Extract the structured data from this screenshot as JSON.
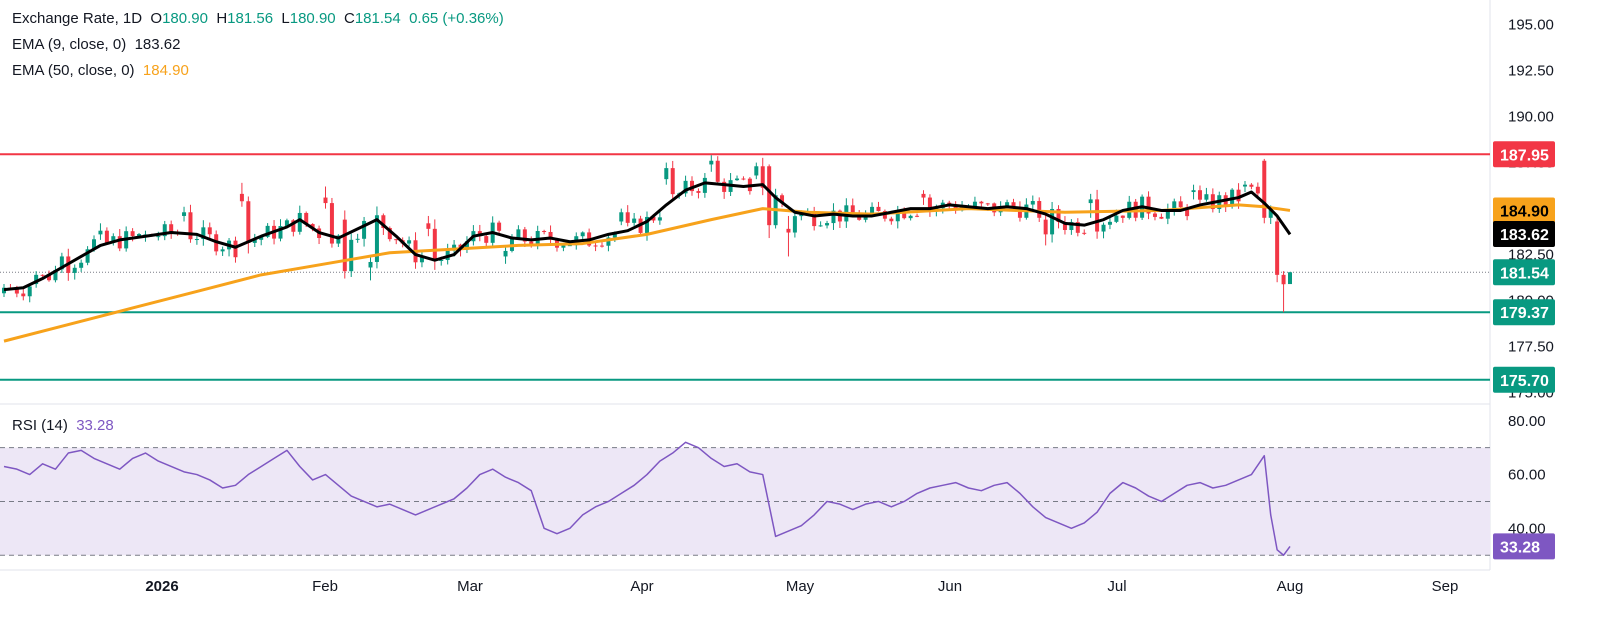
{
  "legend": {
    "title": "Exchange Rate, 1D",
    "ohlc": {
      "o_label": "O",
      "o": "180.90",
      "h_label": "H",
      "h": "181.56",
      "l_label": "L",
      "l": "180.90",
      "c_label": "C",
      "c": "181.54",
      "change": "0.65 (+0.36%)"
    },
    "ema9": {
      "label": "EMA (9, close, 0)",
      "value": "183.62"
    },
    "ema50": {
      "label": "EMA (50, close, 0)",
      "value": "184.90"
    }
  },
  "rsi_legend": {
    "label": "RSI (14)",
    "value": "33.28"
  },
  "colors": {
    "up": "#089981",
    "down": "#f23645",
    "ema9": "#000000",
    "ema50": "#f7a21b",
    "resistance": "#f23645",
    "support": "#089981",
    "rsi": "#7e57c2",
    "rsi_band": "#ede7f6"
  },
  "chart_data": [
    {
      "type": "candlestick",
      "x_ticks": [
        "2026",
        "Feb",
        "Mar",
        "Apr",
        "May",
        "Jun",
        "Jul",
        "Aug",
        "Sep"
      ],
      "y_ticks": [
        "195.00",
        "192.50",
        "190.00",
        "187.50",
        "185.00",
        "182.50",
        "180.00",
        "177.50",
        "175.00"
      ],
      "ylim": [
        174.6,
        195.9
      ],
      "horizontal_levels": [
        {
          "value": 187.95,
          "label": "187.95",
          "kind": "resistance"
        },
        {
          "value": 179.37,
          "label": "179.37",
          "kind": "support"
        },
        {
          "value": 175.7,
          "label": "175.70",
          "kind": "support"
        }
      ],
      "price_labels": [
        {
          "value": 184.9,
          "label": "184.90",
          "series": "ema50"
        },
        {
          "value": 183.62,
          "label": "183.62",
          "series": "ema9"
        },
        {
          "value": 181.54,
          "label": "181.54",
          "series": "last"
        }
      ],
      "last_close": 181.54,
      "ema9_series": [
        [
          0,
          180.6
        ],
        [
          3,
          180.7
        ],
        [
          6,
          181.2
        ],
        [
          9,
          181.8
        ],
        [
          12,
          182.4
        ],
        [
          15,
          183.0
        ],
        [
          18,
          183.3
        ],
        [
          22,
          183.5
        ],
        [
          26,
          183.7
        ],
        [
          30,
          183.6
        ],
        [
          33,
          183.2
        ],
        [
          36,
          182.9
        ],
        [
          40,
          183.5
        ],
        [
          44,
          184.0
        ],
        [
          46,
          184.4
        ],
        [
          49,
          183.7
        ],
        [
          52,
          183.4
        ],
        [
          55,
          183.9
        ],
        [
          58,
          184.4
        ],
        [
          61,
          183.5
        ],
        [
          64,
          182.5
        ],
        [
          67,
          182.2
        ],
        [
          70,
          182.5
        ],
        [
          73,
          183.5
        ],
        [
          76,
          183.7
        ],
        [
          79,
          183.4
        ],
        [
          82,
          183.3
        ],
        [
          85,
          183.4
        ],
        [
          88,
          183.2
        ],
        [
          91,
          183.3
        ],
        [
          94,
          183.6
        ],
        [
          97,
          183.8
        ],
        [
          100,
          184.3
        ],
        [
          103,
          185.2
        ],
        [
          106,
          186.0
        ],
        [
          109,
          186.4
        ],
        [
          112,
          186.3
        ],
        [
          115,
          186.2
        ],
        [
          118,
          186.3
        ],
        [
          120,
          185.6
        ],
        [
          123,
          184.8
        ],
        [
          126,
          184.6
        ],
        [
          129,
          184.7
        ],
        [
          132,
          184.6
        ],
        [
          135,
          184.6
        ],
        [
          138,
          184.8
        ],
        [
          141,
          185.0
        ],
        [
          144,
          185.0
        ],
        [
          147,
          185.2
        ],
        [
          150,
          185.1
        ],
        [
          153,
          185.0
        ],
        [
          156,
          185.1
        ],
        [
          159,
          185.0
        ],
        [
          162,
          184.7
        ],
        [
          165,
          184.2
        ],
        [
          168,
          184.1
        ],
        [
          171,
          184.4
        ],
        [
          174,
          184.9
        ],
        [
          177,
          185.1
        ],
        [
          180,
          184.9
        ],
        [
          183,
          184.9
        ],
        [
          186,
          185.2
        ],
        [
          189,
          185.4
        ],
        [
          192,
          185.6
        ],
        [
          194,
          185.9
        ],
        [
          196,
          185.3
        ],
        [
          198,
          184.6
        ],
        [
          200,
          183.6
        ]
      ],
      "ema50_series": [
        [
          0,
          177.8
        ],
        [
          10,
          178.7
        ],
        [
          20,
          179.6
        ],
        [
          30,
          180.5
        ],
        [
          40,
          181.4
        ],
        [
          50,
          182.0
        ],
        [
          60,
          182.6
        ],
        [
          70,
          182.8
        ],
        [
          80,
          183.0
        ],
        [
          90,
          183.1
        ],
        [
          100,
          183.6
        ],
        [
          110,
          184.4
        ],
        [
          118,
          185.0
        ],
        [
          125,
          184.8
        ],
        [
          135,
          184.7
        ],
        [
          150,
          185.0
        ],
        [
          165,
          184.8
        ],
        [
          180,
          184.9
        ],
        [
          192,
          185.2
        ],
        [
          196,
          185.1
        ],
        [
          200,
          184.9
        ]
      ],
      "ohlc_sample": [
        [
          0,
          180.4,
          180.9,
          180.2,
          180.7
        ],
        [
          5,
          180.9,
          181.6,
          180.7,
          181.4
        ],
        [
          9,
          181.7,
          182.6,
          181.5,
          182.4
        ],
        [
          15,
          183.6,
          184.2,
          183.3,
          183.8
        ],
        [
          22,
          183.5,
          183.8,
          183.2,
          183.6
        ],
        [
          28,
          184.6,
          185.1,
          184.3,
          184.8
        ],
        [
          37,
          185.8,
          186.4,
          185.1,
          185.4
        ],
        [
          50,
          185.6,
          186.2,
          185.0,
          185.3
        ],
        [
          53,
          184.4,
          184.9,
          181.2,
          181.6
        ],
        [
          57,
          181.8,
          182.4,
          181.1,
          182.1
        ],
        [
          66,
          184.2,
          184.6,
          183.5,
          183.9
        ],
        [
          78,
          182.4,
          182.9,
          182.0,
          182.7
        ],
        [
          96,
          184.3,
          185.0,
          184.1,
          184.8
        ],
        [
          103,
          186.6,
          187.5,
          186.3,
          187.2
        ],
        [
          110,
          187.4,
          187.9,
          187.0,
          187.6
        ],
        [
          117,
          186.8,
          187.5,
          186.6,
          187.3
        ],
        [
          119,
          187.3,
          187.4,
          183.4,
          184.1
        ],
        [
          122,
          183.9,
          184.6,
          182.4,
          183.7
        ],
        [
          143,
          185.8,
          186.0,
          185.2,
          185.6
        ],
        [
          155,
          184.8,
          185.4,
          184.6,
          185.1
        ],
        [
          162,
          184.4,
          184.8,
          183.0,
          183.6
        ],
        [
          169,
          185.3,
          185.8,
          184.5,
          185.5
        ],
        [
          185,
          185.9,
          186.3,
          185.5,
          186.0
        ],
        [
          193,
          186.2,
          186.5,
          185.9,
          186.3
        ],
        [
          196,
          187.6,
          187.7,
          184.2,
          184.5
        ],
        [
          198,
          184.3,
          184.5,
          181.0,
          181.4
        ],
        [
          199,
          181.4,
          181.6,
          179.37,
          180.89
        ],
        [
          200,
          180.9,
          181.56,
          180.9,
          181.54
        ]
      ]
    },
    {
      "type": "line",
      "name": "RSI (14)",
      "y_ticks": [
        "80.00",
        "60.00",
        "40.00"
      ],
      "ylim": [
        26.0,
        84.0
      ],
      "reference_lines": [
        70,
        50,
        30
      ],
      "last_value": 33.28,
      "last_label": "33.28",
      "values": [
        [
          0,
          63
        ],
        [
          2,
          62
        ],
        [
          4,
          60
        ],
        [
          6,
          64
        ],
        [
          8,
          62
        ],
        [
          10,
          68
        ],
        [
          12,
          69
        ],
        [
          14,
          66
        ],
        [
          16,
          64
        ],
        [
          18,
          62
        ],
        [
          20,
          66
        ],
        [
          22,
          68
        ],
        [
          24,
          65
        ],
        [
          26,
          63
        ],
        [
          28,
          61
        ],
        [
          30,
          60
        ],
        [
          32,
          58
        ],
        [
          34,
          55
        ],
        [
          36,
          56
        ],
        [
          38,
          60
        ],
        [
          40,
          63
        ],
        [
          42,
          66
        ],
        [
          44,
          69
        ],
        [
          46,
          63
        ],
        [
          48,
          58
        ],
        [
          50,
          60
        ],
        [
          52,
          56
        ],
        [
          54,
          52
        ],
        [
          56,
          50
        ],
        [
          58,
          48
        ],
        [
          60,
          49
        ],
        [
          62,
          47
        ],
        [
          64,
          45
        ],
        [
          66,
          47
        ],
        [
          68,
          49
        ],
        [
          70,
          51
        ],
        [
          72,
          55
        ],
        [
          74,
          60
        ],
        [
          76,
          62
        ],
        [
          78,
          59
        ],
        [
          80,
          57
        ],
        [
          82,
          54
        ],
        [
          84,
          40
        ],
        [
          86,
          38
        ],
        [
          88,
          40
        ],
        [
          90,
          45
        ],
        [
          92,
          48
        ],
        [
          94,
          50
        ],
        [
          96,
          53
        ],
        [
          98,
          56
        ],
        [
          100,
          60
        ],
        [
          102,
          65
        ],
        [
          104,
          68
        ],
        [
          106,
          72
        ],
        [
          108,
          70
        ],
        [
          110,
          66
        ],
        [
          112,
          63
        ],
        [
          114,
          64
        ],
        [
          116,
          61
        ],
        [
          118,
          60
        ],
        [
          120,
          37
        ],
        [
          122,
          39
        ],
        [
          124,
          41
        ],
        [
          126,
          45
        ],
        [
          128,
          50
        ],
        [
          130,
          49
        ],
        [
          132,
          47
        ],
        [
          134,
          49
        ],
        [
          136,
          50
        ],
        [
          138,
          48
        ],
        [
          140,
          50
        ],
        [
          142,
          53
        ],
        [
          144,
          55
        ],
        [
          146,
          56
        ],
        [
          148,
          57
        ],
        [
          150,
          55
        ],
        [
          152,
          54
        ],
        [
          154,
          56
        ],
        [
          156,
          57
        ],
        [
          158,
          53
        ],
        [
          160,
          48
        ],
        [
          162,
          44
        ],
        [
          164,
          42
        ],
        [
          166,
          40
        ],
        [
          168,
          42
        ],
        [
          170,
          46
        ],
        [
          172,
          53
        ],
        [
          174,
          57
        ],
        [
          176,
          55
        ],
        [
          178,
          52
        ],
        [
          180,
          50
        ],
        [
          182,
          53
        ],
        [
          184,
          56
        ],
        [
          186,
          57
        ],
        [
          188,
          55
        ],
        [
          190,
          56
        ],
        [
          192,
          58
        ],
        [
          194,
          60
        ],
        [
          196,
          67
        ],
        [
          197,
          45
        ],
        [
          198,
          32
        ],
        [
          199,
          30
        ],
        [
          200,
          33.28
        ]
      ]
    }
  ]
}
